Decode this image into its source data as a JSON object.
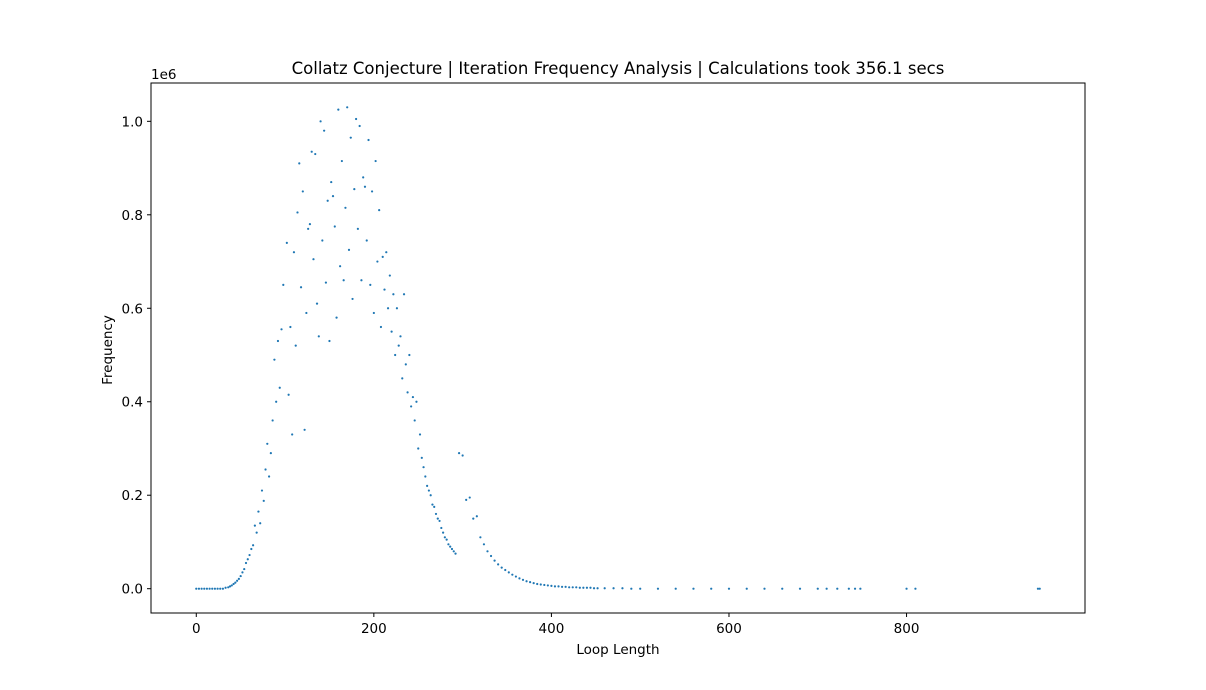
{
  "chart_data": {
    "type": "scatter",
    "title": "Collatz Conjecture | Iteration Frequency Analysis | Calculations took 356.1 secs",
    "xlabel": "Loop Length",
    "ylabel": "Frequency",
    "y_offset_label": "1e6",
    "xlim": [
      -51,
      1001
    ],
    "ylim": [
      -0.052,
      1.082
    ],
    "y_scale": 1000000,
    "xticks": [
      0,
      200,
      400,
      600,
      800
    ],
    "xtick_labels": [
      "0",
      "200",
      "400",
      "600",
      "800"
    ],
    "yticks": [
      0.0,
      0.2,
      0.4,
      0.6,
      0.8,
      1.0
    ],
    "ytick_labels": [
      "0.0",
      "0.2",
      "0.4",
      "0.6",
      "0.8",
      "1.0"
    ],
    "grid": false,
    "marker_color": "#1f77b4",
    "series": [
      {
        "points": [
          [
            0,
            0
          ],
          [
            3,
            0
          ],
          [
            6,
            0
          ],
          [
            9,
            0
          ],
          [
            12,
            0
          ],
          [
            15,
            0
          ],
          [
            18,
            0
          ],
          [
            21,
            0
          ],
          [
            24,
            0
          ],
          [
            27,
            0
          ],
          [
            30,
            0
          ],
          [
            33,
            0.002
          ],
          [
            36,
            0.003
          ],
          [
            38,
            0.005
          ],
          [
            40,
            0.007
          ],
          [
            42,
            0.01
          ],
          [
            44,
            0.013
          ],
          [
            46,
            0.017
          ],
          [
            48,
            0.021
          ],
          [
            50,
            0.027
          ],
          [
            52,
            0.035
          ],
          [
            54,
            0.042
          ],
          [
            56,
            0.055
          ],
          [
            58,
            0.063
          ],
          [
            60,
            0.072
          ],
          [
            62,
            0.085
          ],
          [
            64,
            0.093
          ],
          [
            66,
            0.135
          ],
          [
            68,
            0.12
          ],
          [
            70,
            0.165
          ],
          [
            72,
            0.14
          ],
          [
            74,
            0.21
          ],
          [
            76,
            0.188
          ],
          [
            78,
            0.255
          ],
          [
            80,
            0.31
          ],
          [
            82,
            0.24
          ],
          [
            84,
            0.29
          ],
          [
            86,
            0.36
          ],
          [
            88,
            0.49
          ],
          [
            90,
            0.4
          ],
          [
            92,
            0.53
          ],
          [
            94,
            0.43
          ],
          [
            96,
            0.555
          ],
          [
            98,
            0.65
          ],
          [
            102,
            0.74
          ],
          [
            104,
            0.415
          ],
          [
            106,
            0.56
          ],
          [
            108,
            0.33
          ],
          [
            110,
            0.72
          ],
          [
            112,
            0.52
          ],
          [
            114,
            0.805
          ],
          [
            116,
            0.91
          ],
          [
            118,
            0.645
          ],
          [
            120,
            0.85
          ],
          [
            122,
            0.34
          ],
          [
            124,
            0.59
          ],
          [
            126,
            0.77
          ],
          [
            128,
            0.78
          ],
          [
            130,
            0.935
          ],
          [
            132,
            0.705
          ],
          [
            134,
            0.93
          ],
          [
            136,
            0.61
          ],
          [
            138,
            0.54
          ],
          [
            140,
            1.0
          ],
          [
            142,
            0.745
          ],
          [
            144,
            0.98
          ],
          [
            146,
            0.655
          ],
          [
            148,
            0.83
          ],
          [
            150,
            0.53
          ],
          [
            152,
            0.87
          ],
          [
            154,
            0.84
          ],
          [
            156,
            0.775
          ],
          [
            158,
            0.58
          ],
          [
            160,
            1.025
          ],
          [
            162,
            0.69
          ],
          [
            164,
            0.915
          ],
          [
            166,
            0.66
          ],
          [
            168,
            0.815
          ],
          [
            170,
            1.03
          ],
          [
            172,
            0.725
          ],
          [
            174,
            0.965
          ],
          [
            176,
            0.62
          ],
          [
            178,
            0.855
          ],
          [
            180,
            1.005
          ],
          [
            182,
            0.77
          ],
          [
            184,
            0.99
          ],
          [
            186,
            0.66
          ],
          [
            188,
            0.88
          ],
          [
            190,
            0.86
          ],
          [
            192,
            0.745
          ],
          [
            194,
            0.96
          ],
          [
            196,
            0.65
          ],
          [
            198,
            0.85
          ],
          [
            200,
            0.59
          ],
          [
            202,
            0.915
          ],
          [
            204,
            0.7
          ],
          [
            206,
            0.81
          ],
          [
            208,
            0.56
          ],
          [
            210,
            0.71
          ],
          [
            212,
            0.64
          ],
          [
            214,
            0.72
          ],
          [
            216,
            0.6
          ],
          [
            218,
            0.67
          ],
          [
            220,
            0.55
          ],
          [
            222,
            0.63
          ],
          [
            224,
            0.5
          ],
          [
            226,
            0.6
          ],
          [
            228,
            0.52
          ],
          [
            230,
            0.54
          ],
          [
            232,
            0.45
          ],
          [
            234,
            0.63
          ],
          [
            236,
            0.48
          ],
          [
            238,
            0.42
          ],
          [
            240,
            0.5
          ],
          [
            242,
            0.39
          ],
          [
            244,
            0.41
          ],
          [
            246,
            0.36
          ],
          [
            248,
            0.4
          ],
          [
            250,
            0.3
          ],
          [
            252,
            0.33
          ],
          [
            254,
            0.28
          ],
          [
            256,
            0.26
          ],
          [
            258,
            0.24
          ],
          [
            260,
            0.22
          ],
          [
            262,
            0.21
          ],
          [
            264,
            0.2
          ],
          [
            266,
            0.18
          ],
          [
            268,
            0.175
          ],
          [
            270,
            0.16
          ],
          [
            272,
            0.15
          ],
          [
            274,
            0.145
          ],
          [
            276,
            0.13
          ],
          [
            278,
            0.12
          ],
          [
            280,
            0.11
          ],
          [
            282,
            0.105
          ],
          [
            284,
            0.095
          ],
          [
            286,
            0.09
          ],
          [
            288,
            0.085
          ],
          [
            290,
            0.08
          ],
          [
            292,
            0.075
          ],
          [
            296,
            0.29
          ],
          [
            300,
            0.285
          ],
          [
            304,
            0.19
          ],
          [
            308,
            0.195
          ],
          [
            312,
            0.15
          ],
          [
            316,
            0.155
          ],
          [
            320,
            0.11
          ],
          [
            324,
            0.095
          ],
          [
            328,
            0.08
          ],
          [
            332,
            0.07
          ],
          [
            336,
            0.06
          ],
          [
            340,
            0.052
          ],
          [
            344,
            0.045
          ],
          [
            348,
            0.04
          ],
          [
            352,
            0.035
          ],
          [
            356,
            0.03
          ],
          [
            360,
            0.026
          ],
          [
            364,
            0.022
          ],
          [
            368,
            0.019
          ],
          [
            372,
            0.016
          ],
          [
            376,
            0.014
          ],
          [
            380,
            0.012
          ],
          [
            384,
            0.01
          ],
          [
            388,
            0.009
          ],
          [
            392,
            0.008
          ],
          [
            396,
            0.007
          ],
          [
            400,
            0.006
          ],
          [
            404,
            0.005
          ],
          [
            408,
            0.005
          ],
          [
            412,
            0.004
          ],
          [
            416,
            0.004
          ],
          [
            420,
            0.003
          ],
          [
            424,
            0.003
          ],
          [
            428,
            0.003
          ],
          [
            432,
            0.002
          ],
          [
            436,
            0.002
          ],
          [
            440,
            0.002
          ],
          [
            444,
            0.002
          ],
          [
            448,
            0.001
          ],
          [
            452,
            0.001
          ],
          [
            460,
            0.001
          ],
          [
            470,
            0.001
          ],
          [
            480,
            0.001
          ],
          [
            490,
            0
          ],
          [
            500,
            0
          ],
          [
            520,
            0
          ],
          [
            540,
            0
          ],
          [
            560,
            0
          ],
          [
            580,
            0
          ],
          [
            600,
            0
          ],
          [
            620,
            0
          ],
          [
            640,
            0
          ],
          [
            660,
            0
          ],
          [
            680,
            0
          ],
          [
            700,
            0
          ],
          [
            710,
            0
          ],
          [
            722,
            0
          ],
          [
            735,
            0
          ],
          [
            742,
            0
          ],
          [
            748,
            0
          ],
          [
            800,
            0
          ],
          [
            810,
            0
          ],
          [
            948,
            0
          ],
          [
            950,
            0
          ]
        ]
      }
    ]
  }
}
